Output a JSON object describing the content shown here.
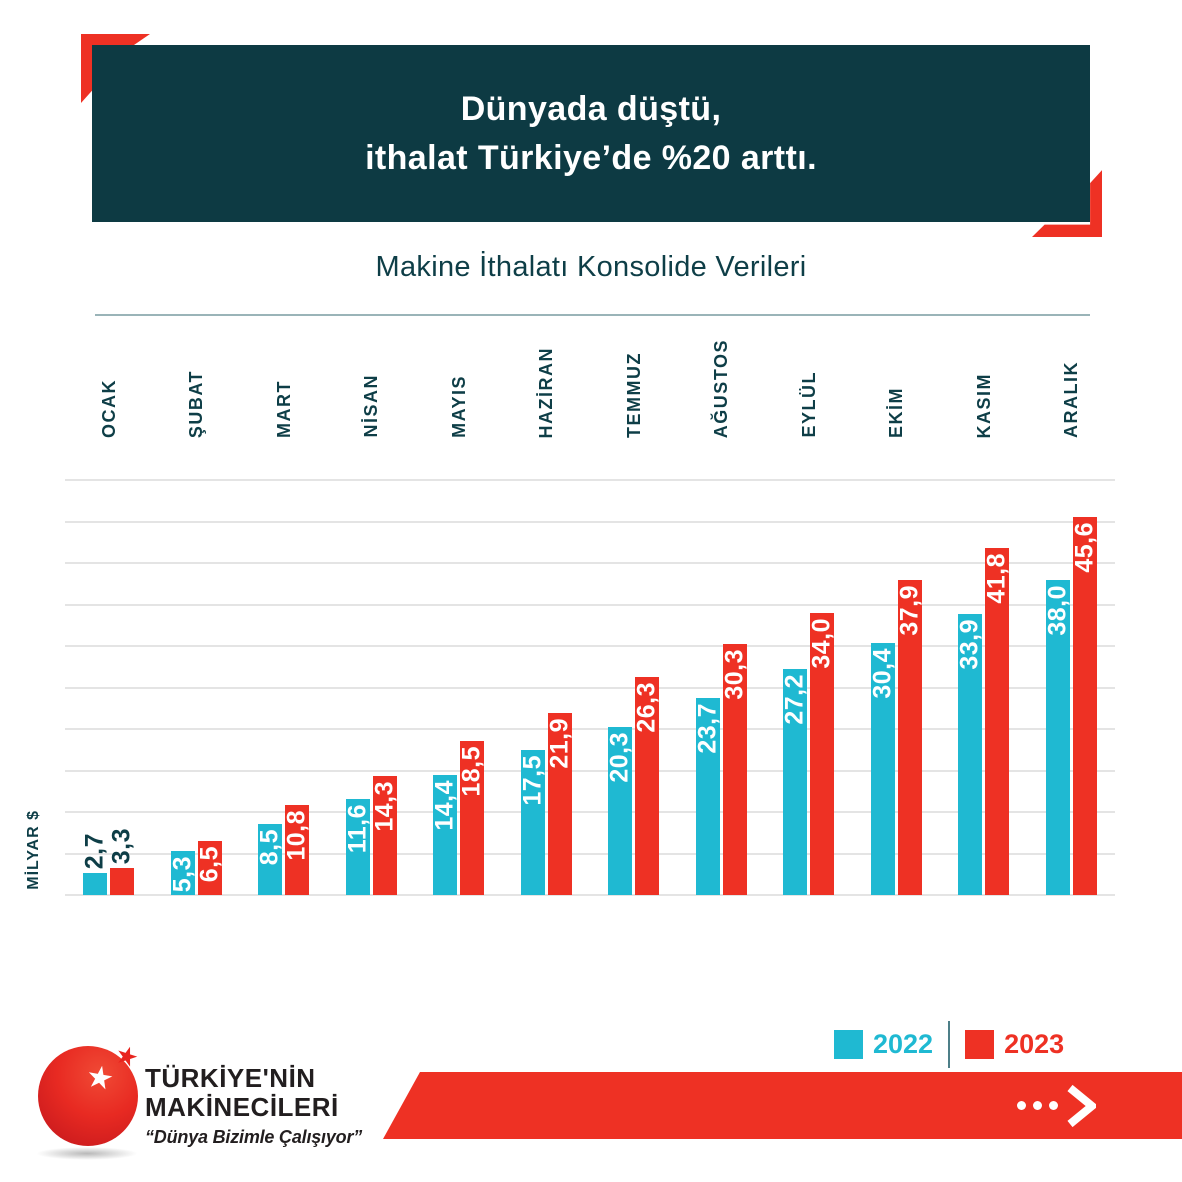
{
  "header": {
    "title_line1": "Dünyada düştü,",
    "title_line2": "ithalat Türkiye’de %20 arttı."
  },
  "subtitle": "Makine İthalatı Konsolide Verileri",
  "chart_data": {
    "type": "bar",
    "title": "Makine İthalatı Konsolide Verileri",
    "categories": [
      "OCAK",
      "ŞUBAT",
      "MART",
      "NİSAN",
      "MAYIS",
      "HAZİRAN",
      "TEMMUZ",
      "AĞUSTOS",
      "EYLÜL",
      "EKİM",
      "KASIM",
      "ARALIK"
    ],
    "series": [
      {
        "name": "2022",
        "color": "#1fb9d2",
        "values": [
          2.7,
          5.3,
          8.5,
          11.6,
          14.4,
          17.5,
          20.3,
          23.7,
          27.2,
          30.4,
          33.9,
          38.0
        ]
      },
      {
        "name": "2023",
        "color": "#ee3124",
        "values": [
          3.3,
          6.5,
          10.8,
          14.3,
          18.5,
          21.9,
          26.3,
          30.3,
          34.0,
          37.9,
          41.8,
          45.6
        ]
      }
    ],
    "xlabel": "",
    "ylabel": "MİLYAR $",
    "ylim": [
      0,
      50
    ],
    "grid_step": 5,
    "grid": "on",
    "legend_position": "bottom-right",
    "label_format": "decimal-comma"
  },
  "legend": {
    "items": [
      {
        "label": "2022",
        "color": "#1fb9d2"
      },
      {
        "label": "2023",
        "color": "#ee3124"
      }
    ]
  },
  "footer": {
    "logo": {
      "name_line1": "TÜRKİYE'NİN",
      "name_line2": "MAKİNECİLERİ",
      "tagline": "“Dünya Bizimle Çalışıyor”",
      "star_icon": "star",
      "ball_color": "#e8251f"
    },
    "banner": {
      "color": "#ee3124",
      "dots_icon": "ellipsis-dots",
      "arrow_icon": "chevron-right"
    }
  },
  "colors": {
    "header_bg": "#0d3a43",
    "accent_red": "#ee3124",
    "accent_cyan": "#1fb9d2",
    "text_teal": "#0e3e47",
    "gridline": "#e4e4e4"
  }
}
